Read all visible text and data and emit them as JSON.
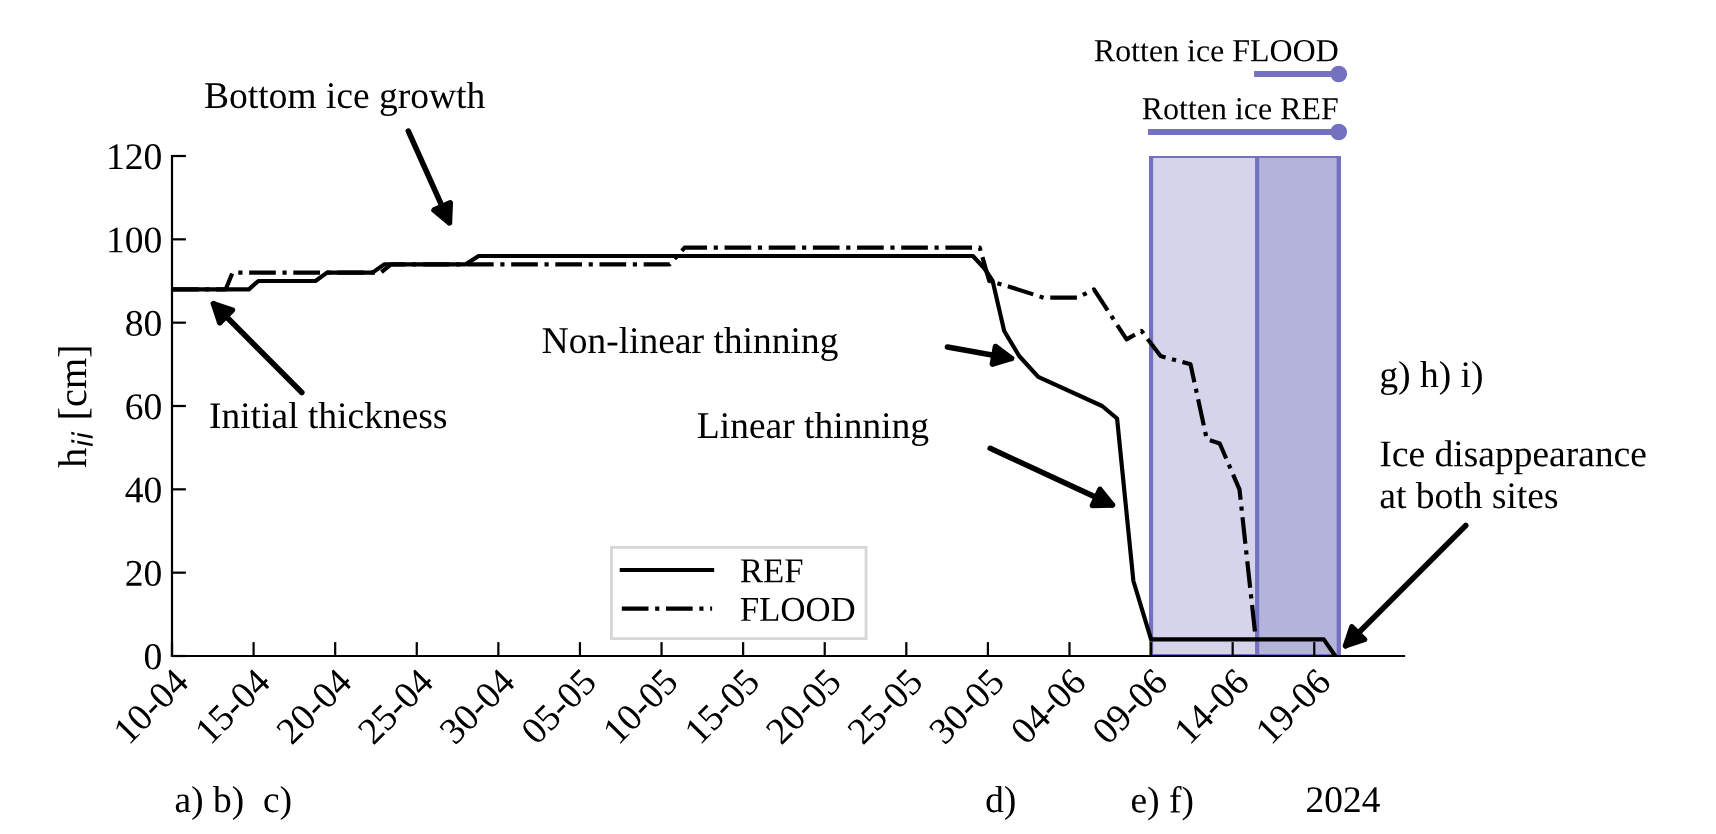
{
  "chart_data": {
    "type": "line",
    "ylabel": "h$_{ii}$ [cm]",
    "ylim": [
      0,
      120
    ],
    "yticks": [
      0,
      20,
      40,
      60,
      80,
      100,
      120
    ],
    "xlim": [
      "2024-04-10",
      "2024-06-24T12:00"
    ],
    "xticks": [
      {
        "value": "2024-04-10",
        "label": "10-04"
      },
      {
        "value": "2024-04-15",
        "label": "15-04"
      },
      {
        "value": "2024-04-20",
        "label": "20-04"
      },
      {
        "value": "2024-04-25",
        "label": "25-04"
      },
      {
        "value": "2024-04-30",
        "label": "30-04"
      },
      {
        "value": "2024-05-05",
        "label": "05-05"
      },
      {
        "value": "2024-05-10",
        "label": "10-05"
      },
      {
        "value": "2024-05-15",
        "label": "15-05"
      },
      {
        "value": "2024-05-20",
        "label": "20-05"
      },
      {
        "value": "2024-05-25",
        "label": "25-05"
      },
      {
        "value": "2024-05-30",
        "label": "30-05"
      },
      {
        "value": "2024-06-04",
        "label": "04-06"
      },
      {
        "value": "2024-06-09",
        "label": "09-06"
      },
      {
        "value": "2024-06-14",
        "label": "14-06"
      },
      {
        "value": "2024-06-19",
        "label": "19-06"
      }
    ],
    "grid": false,
    "legend": "bottom",
    "marker": "none",
    "series": [
      {
        "name": "REF",
        "color": "#000000",
        "line_style": "solid",
        "x": [
          "2024-04-10",
          "2024-04-14T17:00",
          "2024-04-15T07:00",
          "2024-04-18T19:00",
          "2024-04-19T12:00",
          "2024-04-22T07:00",
          "2024-04-23",
          "2024-04-28",
          "2024-04-28T19:00",
          "2024-05-29T02:00",
          "2024-05-29T19:00",
          "2024-05-30T07:00",
          "2024-05-31",
          "2024-05-31T22:00",
          "2024-06-02T02:00",
          "2024-06-06",
          "2024-06-06T22:00",
          "2024-06-07T22:00",
          "2024-06-09",
          "2024-06-19T14:00",
          "2024-06-20T07:00"
        ],
        "values": [
          88,
          88,
          90,
          90,
          92,
          92,
          94,
          94,
          96,
          96,
          93,
          90,
          78,
          72,
          67,
          60,
          57,
          18,
          4,
          4,
          0
        ]
      },
      {
        "name": "FLOOD",
        "color": "#000000",
        "line_style": "dashdot",
        "x": [
          "2024-04-10",
          "2024-04-13T07:00",
          "2024-04-13T17:00",
          "2024-04-22T19:00",
          "2024-04-23T10:00",
          "2024-05-10T12:00",
          "2024-05-11T10:00",
          "2024-05-29T12:00",
          "2024-05-30T02:00",
          "2024-05-31",
          "2024-06-02T10:00",
          "2024-06-04T12:00",
          "2024-06-05T12:00",
          "2024-06-07T12:00",
          "2024-06-08T10:00",
          "2024-06-09T14:00",
          "2024-06-11T10:00",
          "2024-06-12T10:00",
          "2024-06-13T05:00",
          "2024-06-14T10:00",
          "2024-06-15T10:00"
        ],
        "values": [
          88,
          88,
          92,
          92,
          94,
          94,
          98,
          98,
          90,
          89,
          86,
          86,
          88,
          76,
          78,
          72,
          70,
          52,
          51,
          40,
          4
        ]
      }
    ],
    "bands": [
      {
        "axis": "x",
        "from": "2024-06-09",
        "to": "2024-06-20T12:00",
        "label": "Rotten ice REF",
        "color": "#d5d4ea"
      },
      {
        "axis": "x",
        "from": "2024-06-15T12:00",
        "to": "2024-06-20T12:00",
        "label": "Rotten ice FLOOD",
        "color": "#b4b3d9"
      }
    ],
    "annotations": [
      "Bottom ice growth",
      {
        "text": "Initial thickness",
        "x": "2024-04-11T22:00",
        "y": 87
      },
      "Non-linear thinning",
      "Linear thinning",
      {
        "text": "Ice disappearance\nat both sites",
        "x": "2024-06-20T07:00",
        "y": 0
      },
      "g) h) i)",
      "a) b)  c)",
      "d)",
      "e) f)",
      "2024"
    ]
  }
}
